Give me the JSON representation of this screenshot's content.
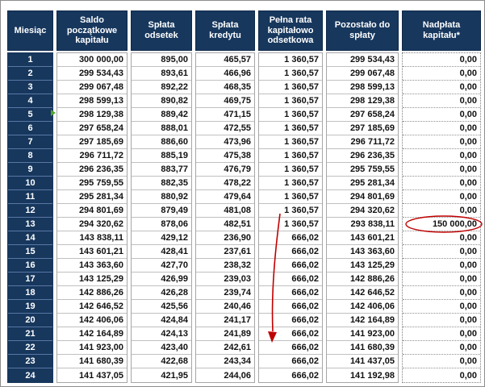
{
  "colors": {
    "header_bg": "#17375D",
    "header_text": "#FFFFFF",
    "grid_border": "#A6A6A6",
    "annotation_red": "#C00000",
    "flag_green": "#4EA72E"
  },
  "table": {
    "headers": [
      "Miesiąc",
      "Saldo początkowe kapitału",
      "Spłata odsetek",
      "Spłata kredytu",
      "Pełna rata kapitałowo odsetkowa",
      "Pozostało do spłaty",
      "Nadpłata kapitału*"
    ],
    "rows": [
      {
        "month": "1",
        "opening": "300 000,00",
        "interest": "895,00",
        "principal": "465,57",
        "installment": "1 360,57",
        "remaining": "299 534,43",
        "overpayment": "0,00"
      },
      {
        "month": "2",
        "opening": "299 534,43",
        "interest": "893,61",
        "principal": "466,96",
        "installment": "1 360,57",
        "remaining": "299 067,48",
        "overpayment": "0,00"
      },
      {
        "month": "3",
        "opening": "299 067,48",
        "interest": "892,22",
        "principal": "468,35",
        "installment": "1 360,57",
        "remaining": "298 599,13",
        "overpayment": "0,00"
      },
      {
        "month": "4",
        "opening": "298 599,13",
        "interest": "890,82",
        "principal": "469,75",
        "installment": "1 360,57",
        "remaining": "298 129,38",
        "overpayment": "0,00"
      },
      {
        "month": "5",
        "opening": "298 129,38",
        "interest": "889,42",
        "principal": "471,15",
        "installment": "1 360,57",
        "remaining": "297 658,24",
        "overpayment": "0,00"
      },
      {
        "month": "6",
        "opening": "297 658,24",
        "interest": "888,01",
        "principal": "472,55",
        "installment": "1 360,57",
        "remaining": "297 185,69",
        "overpayment": "0,00"
      },
      {
        "month": "7",
        "opening": "297 185,69",
        "interest": "886,60",
        "principal": "473,96",
        "installment": "1 360,57",
        "remaining": "296 711,72",
        "overpayment": "0,00"
      },
      {
        "month": "8",
        "opening": "296 711,72",
        "interest": "885,19",
        "principal": "475,38",
        "installment": "1 360,57",
        "remaining": "296 236,35",
        "overpayment": "0,00"
      },
      {
        "month": "9",
        "opening": "296 236,35",
        "interest": "883,77",
        "principal": "476,79",
        "installment": "1 360,57",
        "remaining": "295 759,55",
        "overpayment": "0,00"
      },
      {
        "month": "10",
        "opening": "295 759,55",
        "interest": "882,35",
        "principal": "478,22",
        "installment": "1 360,57",
        "remaining": "295 281,34",
        "overpayment": "0,00"
      },
      {
        "month": "11",
        "opening": "295 281,34",
        "interest": "880,92",
        "principal": "479,64",
        "installment": "1 360,57",
        "remaining": "294 801,69",
        "overpayment": "0,00"
      },
      {
        "month": "12",
        "opening": "294 801,69",
        "interest": "879,49",
        "principal": "481,08",
        "installment": "1 360,57",
        "remaining": "294 320,62",
        "overpayment": "0,00"
      },
      {
        "month": "13",
        "opening": "294 320,62",
        "interest": "878,06",
        "principal": "482,51",
        "installment": "1 360,57",
        "remaining": "293 838,11",
        "overpayment": "150 000,00"
      },
      {
        "month": "14",
        "opening": "143 838,11",
        "interest": "429,12",
        "principal": "236,90",
        "installment": "666,02",
        "remaining": "143 601,21",
        "overpayment": "0,00"
      },
      {
        "month": "15",
        "opening": "143 601,21",
        "interest": "428,41",
        "principal": "237,61",
        "installment": "666,02",
        "remaining": "143 363,60",
        "overpayment": "0,00"
      },
      {
        "month": "16",
        "opening": "143 363,60",
        "interest": "427,70",
        "principal": "238,32",
        "installment": "666,02",
        "remaining": "143 125,29",
        "overpayment": "0,00"
      },
      {
        "month": "17",
        "opening": "143 125,29",
        "interest": "426,99",
        "principal": "239,03",
        "installment": "666,02",
        "remaining": "142 886,26",
        "overpayment": "0,00"
      },
      {
        "month": "18",
        "opening": "142 886,26",
        "interest": "426,28",
        "principal": "239,74",
        "installment": "666,02",
        "remaining": "142 646,52",
        "overpayment": "0,00"
      },
      {
        "month": "19",
        "opening": "142 646,52",
        "interest": "425,56",
        "principal": "240,46",
        "installment": "666,02",
        "remaining": "142 406,06",
        "overpayment": "0,00"
      },
      {
        "month": "20",
        "opening": "142 406,06",
        "interest": "424,84",
        "principal": "241,17",
        "installment": "666,02",
        "remaining": "142 164,89",
        "overpayment": "0,00"
      },
      {
        "month": "21",
        "opening": "142 164,89",
        "interest": "424,13",
        "principal": "241,89",
        "installment": "666,02",
        "remaining": "141 923,00",
        "overpayment": "0,00"
      },
      {
        "month": "22",
        "opening": "141 923,00",
        "interest": "423,40",
        "principal": "242,61",
        "installment": "666,02",
        "remaining": "141 680,39",
        "overpayment": "0,00"
      },
      {
        "month": "23",
        "opening": "141 680,39",
        "interest": "422,68",
        "principal": "243,34",
        "installment": "666,02",
        "remaining": "141 437,05",
        "overpayment": "0,00"
      },
      {
        "month": "24",
        "opening": "141 437,05",
        "interest": "421,95",
        "principal": "244,06",
        "installment": "666,02",
        "remaining": "141 192,98",
        "overpayment": "0,00"
      }
    ]
  },
  "annotations": {
    "circled_value": "150 000,00",
    "circled_value_month": "13",
    "arrow_direction": "down"
  }
}
